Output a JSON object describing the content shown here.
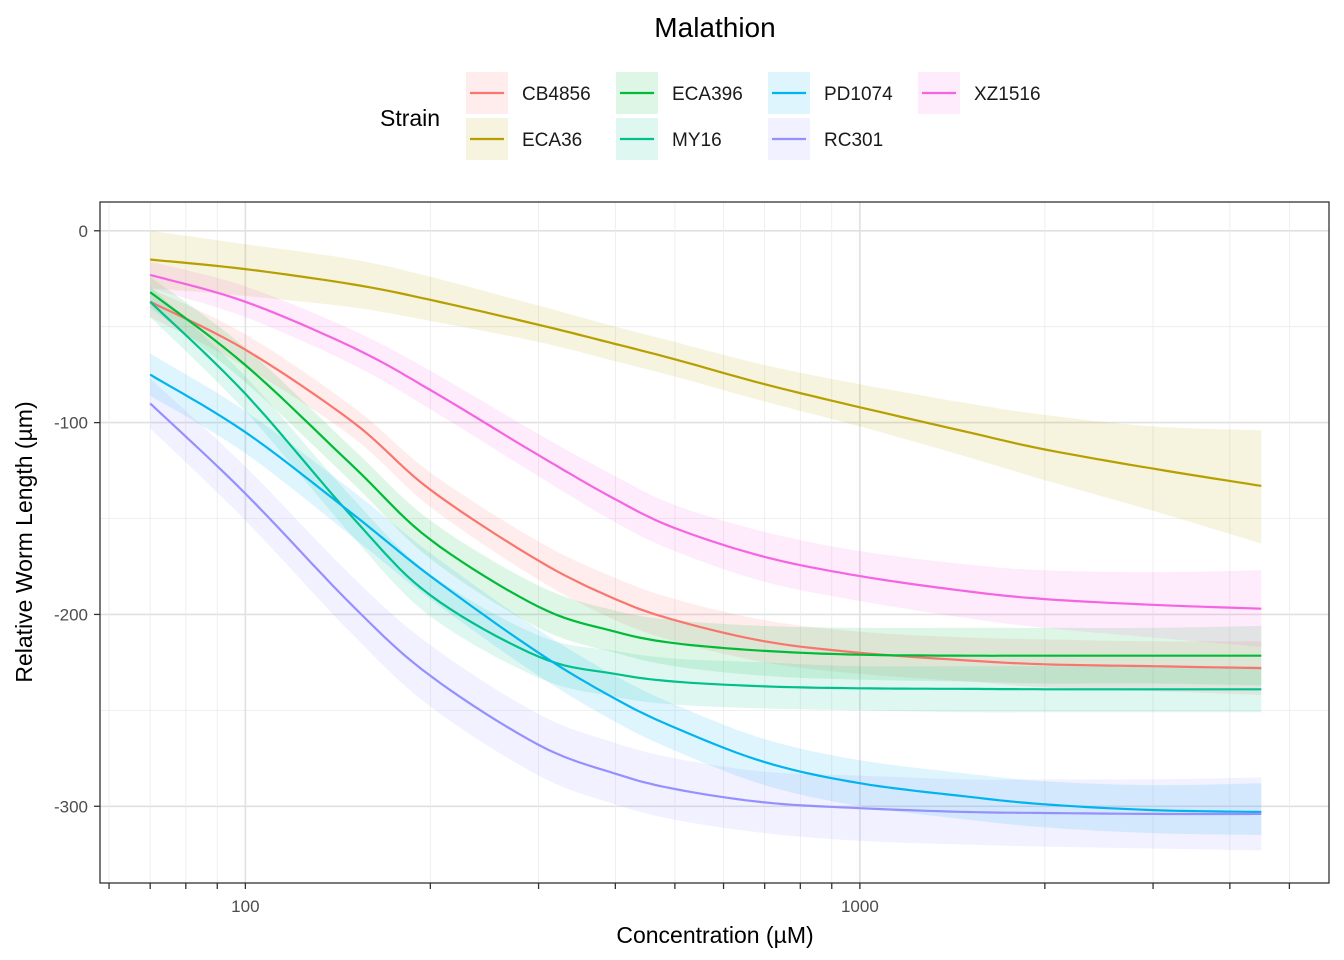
{
  "chart_data": {
    "type": "line",
    "title": "Malathion",
    "xlabel": "Concentration (µM)",
    "ylabel": "Relative Worm Length (µm)",
    "xscale": "log10",
    "xlim": [
      58,
      5800
    ],
    "ylim": [
      -340,
      15
    ],
    "x_ticks": [
      100,
      1000
    ],
    "x_tick_labels": [
      "100",
      "1000"
    ],
    "y_ticks": [
      0,
      -100,
      -200,
      -300
    ],
    "y_tick_labels": [
      "0",
      "-100",
      "-200",
      "-300"
    ],
    "grid": true,
    "legend": {
      "title": "Strain",
      "position": "top",
      "entries": [
        "CB4856",
        "ECA36",
        "ECA396",
        "MY16",
        "PD1074",
        "RC301",
        "XZ1516"
      ]
    },
    "x": [
      70,
      100,
      150,
      200,
      300,
      400,
      500,
      700,
      1000,
      1500,
      2000,
      3000,
      4500
    ],
    "series": [
      {
        "name": "CB4856",
        "color": "#F8766D",
        "values": [
          -37,
          -62,
          -100,
          -135,
          -172,
          -192,
          -203,
          -214,
          -220,
          -224,
          -226,
          -227,
          -228
        ],
        "lower": [
          -45,
          -71,
          -108,
          -144,
          -182,
          -203,
          -214,
          -225,
          -231,
          -235,
          -238,
          -240,
          -242
        ],
        "upper": [
          -30,
          -54,
          -92,
          -126,
          -162,
          -181,
          -192,
          -203,
          -209,
          -212,
          -213,
          -214,
          -214
        ]
      },
      {
        "name": "ECA36",
        "color": "#B79F00",
        "values": [
          -15,
          -20,
          -28,
          -36,
          -49,
          -59,
          -67,
          -80,
          -92,
          -105,
          -114,
          -124,
          -133
        ],
        "lower": [
          -30,
          -34,
          -40,
          -47,
          -58,
          -68,
          -76,
          -89,
          -102,
          -118,
          -130,
          -146,
          -163
        ],
        "upper": [
          0,
          -7,
          -15,
          -24,
          -39,
          -50,
          -58,
          -70,
          -80,
          -90,
          -96,
          -102,
          -104
        ]
      },
      {
        "name": "ECA396",
        "color": "#00BA38",
        "values": [
          -32,
          -70,
          -123,
          -161,
          -196,
          -209,
          -215,
          -219,
          -221,
          -221.5,
          -221.5,
          -221.5,
          -221.5
        ],
        "lower": [
          -40,
          -79,
          -132,
          -171,
          -207,
          -220,
          -227,
          -232,
          -234,
          -235,
          -236,
          -236,
          -237
        ],
        "upper": [
          -24,
          -61,
          -114,
          -151,
          -185,
          -198,
          -203,
          -206,
          -207,
          -207,
          -207,
          -207,
          -206
        ]
      },
      {
        "name": "MY16",
        "color": "#00C08B",
        "values": [
          -37,
          -85,
          -150,
          -190,
          -222,
          -231,
          -235,
          -237.5,
          -238.5,
          -238.8,
          -239,
          -239,
          -239
        ],
        "lower": [
          -45,
          -94,
          -160,
          -201,
          -233,
          -243,
          -247,
          -249,
          -250,
          -251,
          -251,
          -251,
          -251
        ],
        "upper": [
          -29,
          -76,
          -140,
          -179,
          -211,
          -219,
          -223,
          -225,
          -227,
          -227,
          -227,
          -227,
          -227
        ]
      },
      {
        "name": "PD1074",
        "color": "#00B4EF",
        "values": [
          -75,
          -105,
          -148,
          -180,
          -220,
          -244,
          -259,
          -277,
          -288,
          -295,
          -299,
          -302,
          -303
        ],
        "lower": [
          -86,
          -116,
          -160,
          -192,
          -232,
          -256,
          -271,
          -289,
          -300,
          -307,
          -311,
          -314,
          -315
        ],
        "upper": [
          -64,
          -94,
          -136,
          -168,
          -208,
          -232,
          -247,
          -265,
          -276,
          -283,
          -287,
          -289,
          -288
        ]
      },
      {
        "name": "RC301",
        "color": "#9590FF",
        "values": [
          -90,
          -137,
          -196,
          -232,
          -268,
          -283,
          -291,
          -298,
          -301,
          -303,
          -303.5,
          -304,
          -304
        ],
        "lower": [
          -103,
          -151,
          -211,
          -248,
          -284,
          -299,
          -307,
          -314,
          -318,
          -320,
          -321,
          -322,
          -323
        ],
        "upper": [
          -77,
          -123,
          -181,
          -216,
          -252,
          -267,
          -275,
          -282,
          -284,
          -286,
          -286,
          -286,
          -285
        ]
      },
      {
        "name": "XZ1516",
        "color": "#F564E3",
        "values": [
          -23,
          -37,
          -61,
          -83,
          -117,
          -140,
          -155,
          -170,
          -180,
          -188,
          -192,
          -195,
          -197
        ],
        "lower": [
          -30,
          -45,
          -70,
          -93,
          -128,
          -152,
          -167,
          -183,
          -193,
          -202,
          -207,
          -212,
          -217
        ],
        "upper": [
          -16,
          -29,
          -52,
          -73,
          -106,
          -128,
          -143,
          -157,
          -167,
          -174,
          -177,
          -178,
          -177
        ]
      }
    ]
  }
}
